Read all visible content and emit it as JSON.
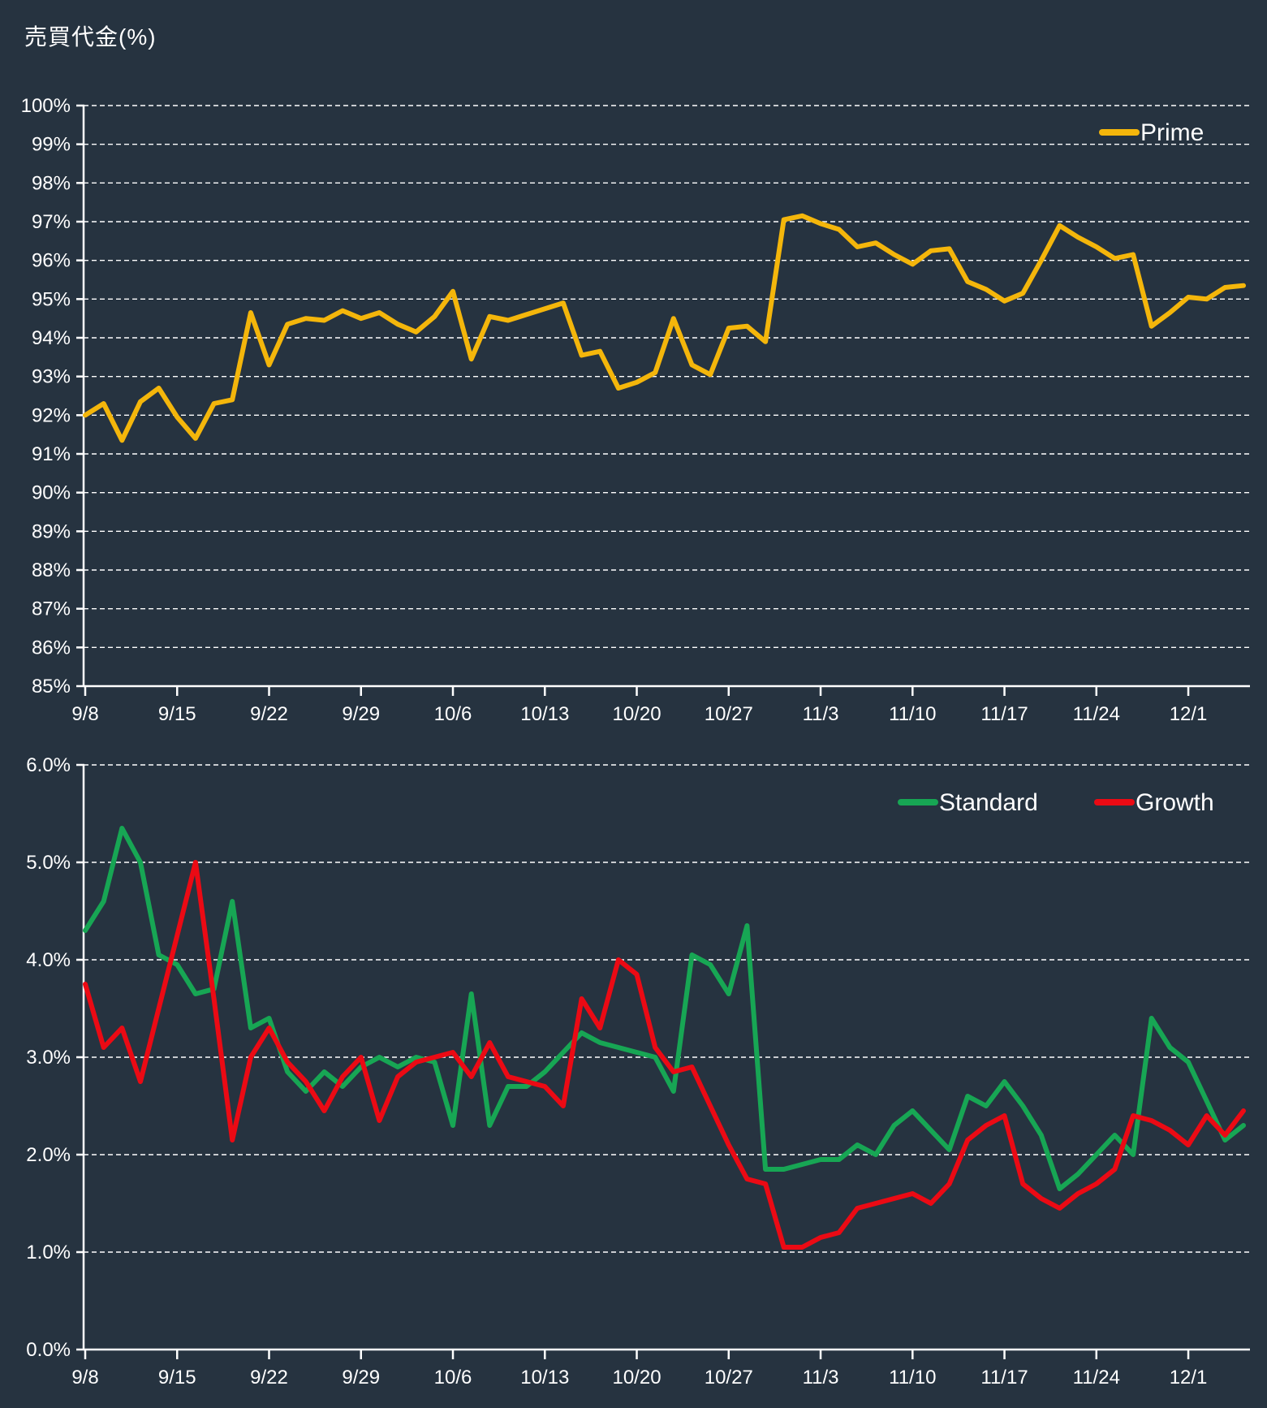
{
  "title": "売買代金(%)",
  "colors": {
    "background": "#263340",
    "text": "#FFFFFF",
    "grid": "#FFFFFF",
    "prime": "#F4B60B",
    "standard": "#17A654",
    "growth": "#EB0A14"
  },
  "chart_data": [
    {
      "type": "line",
      "title": "売買代金(%)",
      "xlabel": "",
      "ylabel": "",
      "ylim": [
        85,
        100
      ],
      "ytick_step": 1,
      "ytick_labels": [
        "85%",
        "86%",
        "87%",
        "88%",
        "89%",
        "90%",
        "91%",
        "92%",
        "93%",
        "94%",
        "95%",
        "96%",
        "97%",
        "98%",
        "99%",
        "100%"
      ],
      "x_tick_labels": [
        "9/8",
        "9/15",
        "9/22",
        "9/29",
        "10/6",
        "10/13",
        "10/20",
        "10/27",
        "11/3",
        "11/10",
        "11/17",
        "11/24",
        "12/1"
      ],
      "x_ticks_every_n_points": 5,
      "grid": true,
      "legend_position": "top-right",
      "series": [
        {
          "name": "Prime",
          "color_key": "prime",
          "values": [
            92.0,
            92.3,
            91.35,
            92.35,
            92.7,
            91.95,
            91.4,
            92.3,
            92.4,
            94.65,
            93.3,
            94.35,
            94.5,
            94.45,
            94.7,
            94.5,
            94.65,
            94.35,
            94.15,
            94.55,
            95.2,
            93.45,
            94.55,
            94.45,
            94.6,
            94.75,
            94.9,
            93.55,
            93.65,
            92.7,
            92.85,
            93.1,
            94.5,
            93.3,
            93.05,
            94.25,
            94.3,
            93.9,
            97.05,
            97.15,
            96.95,
            96.8,
            96.35,
            96.45,
            96.15,
            95.9,
            96.25,
            96.3,
            95.45,
            95.25,
            94.95,
            95.15,
            96.0,
            96.9,
            96.6,
            96.35,
            96.05,
            96.15,
            94.3,
            94.65,
            95.05,
            95.0,
            95.3,
            95.35
          ]
        }
      ]
    },
    {
      "type": "line",
      "title": "",
      "xlabel": "",
      "ylabel": "",
      "ylim": [
        0,
        6
      ],
      "ytick_step": 1,
      "ytick_labels": [
        "0.0%",
        "1.0%",
        "2.0%",
        "3.0%",
        "4.0%",
        "5.0%",
        "6.0%"
      ],
      "x_tick_labels": [
        "9/8",
        "9/15",
        "9/22",
        "9/29",
        "10/6",
        "10/13",
        "10/20",
        "10/27",
        "11/3",
        "11/10",
        "11/17",
        "11/24",
        "12/1"
      ],
      "x_ticks_every_n_points": 5,
      "grid": true,
      "legend_position": "top-right",
      "series": [
        {
          "name": "Standard",
          "color_key": "standard",
          "values": [
            4.3,
            4.6,
            5.35,
            5.0,
            4.05,
            3.95,
            3.65,
            3.7,
            4.6,
            3.3,
            3.4,
            2.85,
            2.65,
            2.85,
            2.7,
            2.9,
            3.0,
            2.9,
            3.0,
            2.95,
            2.3,
            3.65,
            2.3,
            2.7,
            2.7,
            2.85,
            3.05,
            3.25,
            3.15,
            3.1,
            3.05,
            3.0,
            2.65,
            4.05,
            3.95,
            3.65,
            4.35,
            1.85,
            1.85,
            1.9,
            1.95,
            1.95,
            2.1,
            2.0,
            2.3,
            2.45,
            2.25,
            2.05,
            2.6,
            2.5,
            2.75,
            2.5,
            2.2,
            1.65,
            1.8,
            2.0,
            2.2,
            2.0,
            3.4,
            3.1,
            2.95,
            2.55,
            2.15,
            2.3
          ]
        },
        {
          "name": "Growth",
          "color_key": "growth",
          "values": [
            3.75,
            3.1,
            3.3,
            2.75,
            3.5,
            4.25,
            5.0,
            3.6,
            2.15,
            3.0,
            3.3,
            2.95,
            2.75,
            2.45,
            2.8,
            3.0,
            2.35,
            2.8,
            2.95,
            3.0,
            3.05,
            2.8,
            3.15,
            2.8,
            2.75,
            2.7,
            2.5,
            3.6,
            3.3,
            4.0,
            3.85,
            3.1,
            2.85,
            2.9,
            2.5,
            2.1,
            1.75,
            1.7,
            1.05,
            1.05,
            1.15,
            1.2,
            1.45,
            1.5,
            1.55,
            1.6,
            1.5,
            1.7,
            2.15,
            2.3,
            2.4,
            1.7,
            1.55,
            1.45,
            1.6,
            1.7,
            1.85,
            2.4,
            2.35,
            2.25,
            2.1,
            2.4,
            2.2,
            2.45
          ]
        }
      ]
    }
  ]
}
